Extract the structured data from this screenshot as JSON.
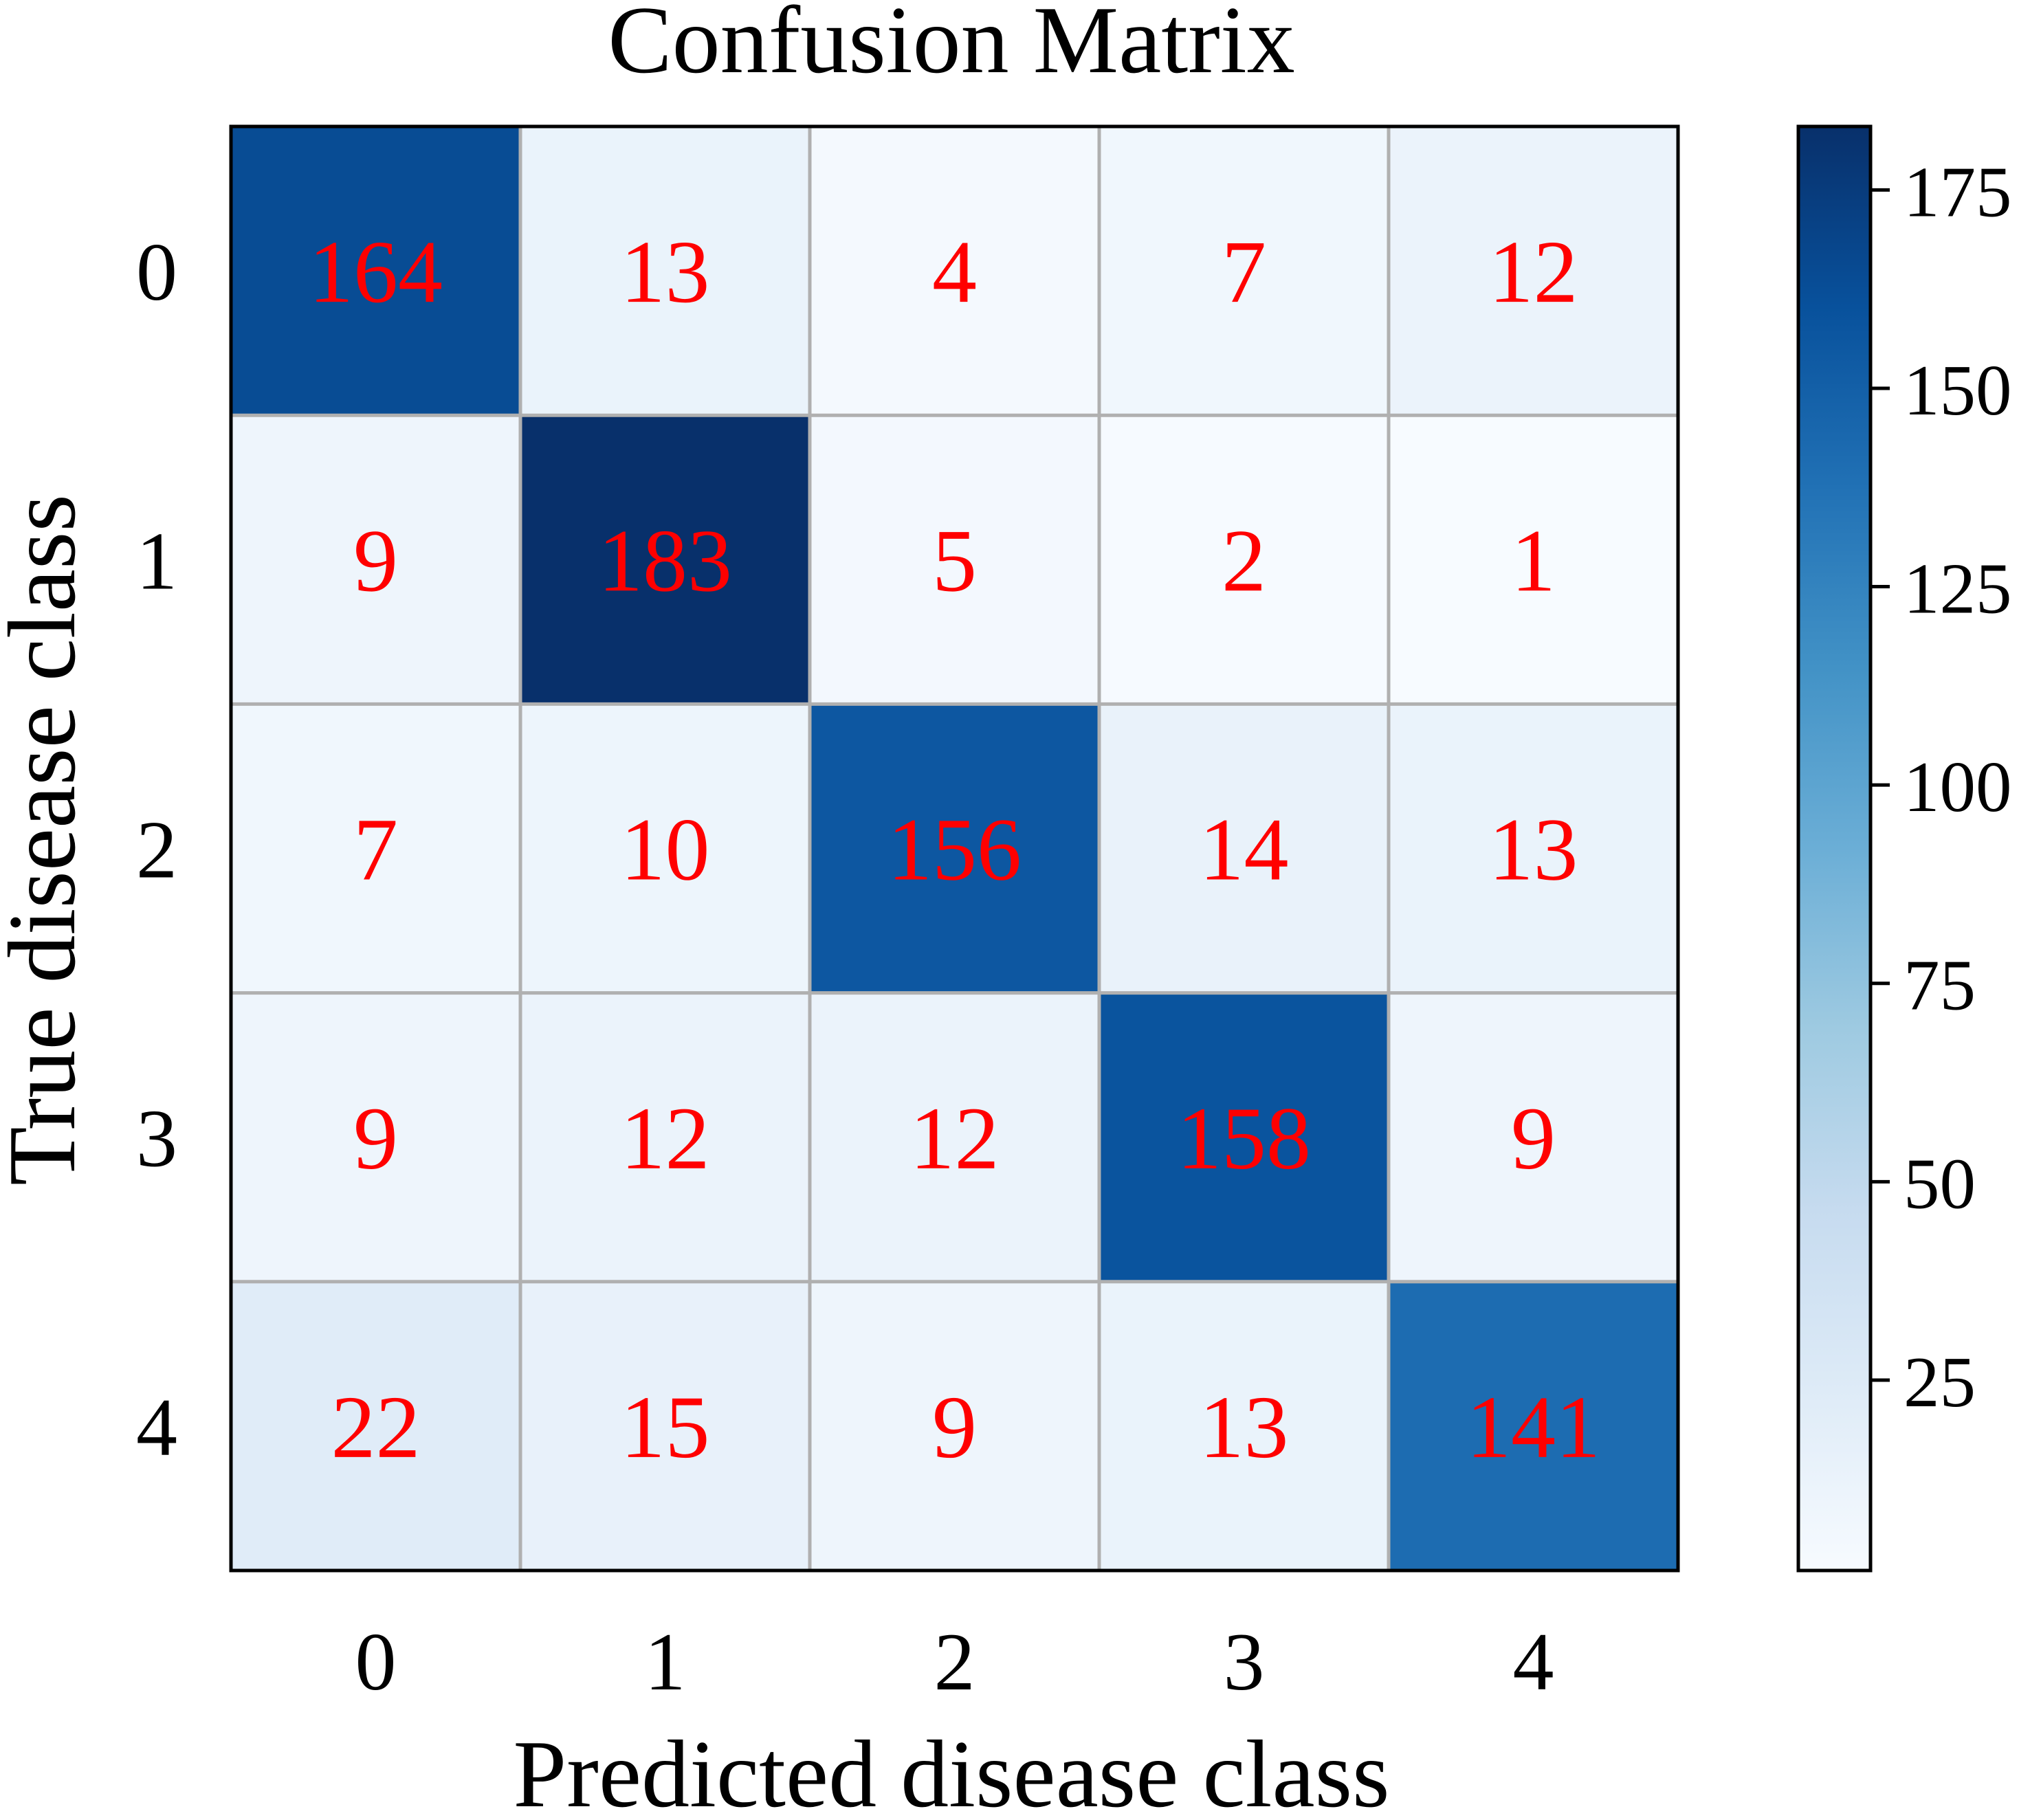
{
  "chart_data": {
    "type": "heatmap",
    "title": "Confusion Matrix",
    "xlabel": "Predicted disease class",
    "ylabel": "True disease class",
    "x_categories": [
      "0",
      "1",
      "2",
      "3",
      "4"
    ],
    "y_categories": [
      "0",
      "1",
      "2",
      "3",
      "4"
    ],
    "values": [
      [
        164,
        13,
        4,
        7,
        12
      ],
      [
        9,
        183,
        5,
        2,
        1
      ],
      [
        7,
        10,
        156,
        14,
        13
      ],
      [
        9,
        12,
        12,
        158,
        9
      ],
      [
        22,
        15,
        9,
        13,
        141
      ]
    ],
    "colormap": "Blues",
    "color_range": [
      1,
      183
    ],
    "colorbar_ticks": [
      25,
      50,
      75,
      100,
      125,
      150,
      175
    ],
    "annotation_color": "#ff0000",
    "grid_color": "#b0b0b0",
    "grid": true,
    "colorbar_position": "right"
  }
}
